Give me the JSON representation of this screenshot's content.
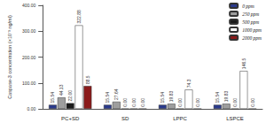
{
  "chart_data": {
    "type": "bar",
    "y_label": "Caspase-3 concentration (×10⁻³ ng/ml)",
    "categories": [
      "PC+SD",
      "SD",
      "LPPC",
      "LSPCE"
    ],
    "series": [
      {
        "name": "0 ppm",
        "color": "#2b3a8c",
        "values": [
          15.54,
          15.54,
          15.54,
          15.54
        ],
        "value_labels": [
          "15.54",
          "15.54",
          "15.54",
          "15.54"
        ]
      },
      {
        "name": "250 ppm",
        "color": "#9e9e9e",
        "values": [
          44.13,
          27.64,
          19.83,
          19.83
        ],
        "value_labels": [
          "44.13",
          "27.64",
          "19.83",
          "19.83"
        ]
      },
      {
        "name": "500 ppm",
        "color": "#1a1a1a",
        "values": [
          22.0,
          0,
          0,
          0
        ],
        "value_labels": [
          "22.00",
          "0.00",
          "0.00",
          "0.00"
        ]
      },
      {
        "name": "1000 ppm",
        "color": "#ffffff",
        "values": [
          322.88,
          0,
          74.3,
          146.5
        ],
        "value_labels": [
          "322.88",
          "0.00",
          "74.3",
          "146.5"
        ]
      },
      {
        "name": "2000 ppm",
        "color": "#8b1a1a",
        "values": [
          88.5,
          0,
          0,
          0
        ],
        "value_labels": [
          "88.5",
          "0.00",
          "0.00",
          "0.00"
        ]
      }
    ],
    "ylim": [
      0,
      400
    ],
    "yticks": [
      {
        "value": 0,
        "label": "0.00"
      },
      {
        "value": 100,
        "label": "100.00"
      },
      {
        "value": 200,
        "label": "200.00"
      },
      {
        "value": 300,
        "label": "300.00"
      },
      {
        "value": 400,
        "label": "400.00"
      }
    ],
    "grid": false,
    "legend": "top-right",
    "data_labels": true
  }
}
